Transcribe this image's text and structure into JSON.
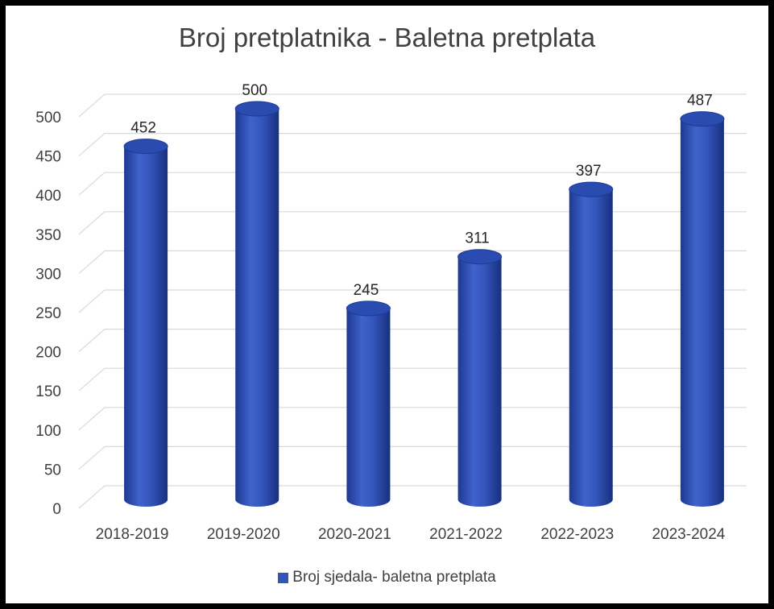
{
  "chart_data": {
    "type": "bar",
    "title": "Broj pretplatnika - Baletna pretplata",
    "categories": [
      "2018-2019",
      "2019-2020",
      "2020-2021",
      "2021-2022",
      "2022-2023",
      "2023-2024"
    ],
    "series": [
      {
        "name": "Broj sjedala- baletna pretplata",
        "values": [
          452,
          500,
          245,
          311,
          397,
          487
        ],
        "color": "#3355bb"
      }
    ],
    "data_labels": [
      "452",
      "500",
      "245",
      "311",
      "397",
      "487"
    ],
    "yticks": [
      0,
      50,
      100,
      150,
      200,
      250,
      300,
      350,
      400,
      450,
      500
    ],
    "ylim": [
      0,
      500
    ],
    "xlabel": "",
    "ylabel": "",
    "grid": true,
    "legend_position": "bottom",
    "style": "3d cylinder"
  }
}
